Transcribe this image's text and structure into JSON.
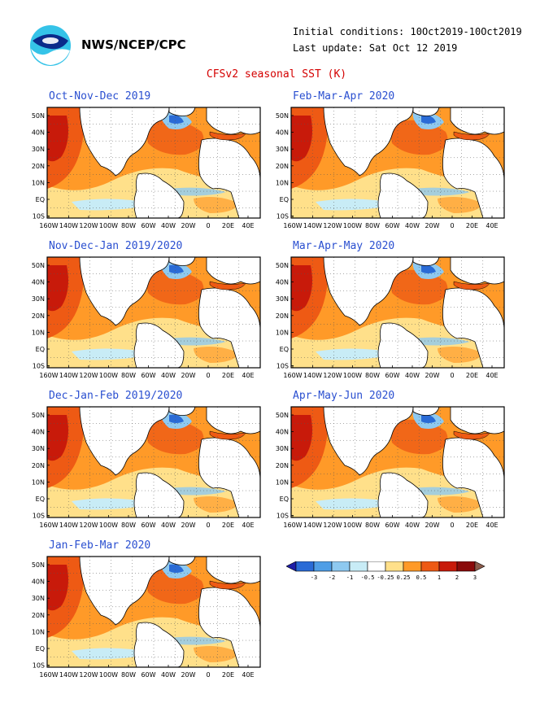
{
  "header": {
    "org": "NWS/NCEP/CPC",
    "initial_conditions": "Initial conditions: 10Oct2019-10Oct2019",
    "last_update": "Last update: Sat Oct 12 2019",
    "title": "CFSv2 seasonal SST (K)"
  },
  "map_axes": {
    "lat_labels": [
      "50N",
      "40N",
      "30N",
      "20N",
      "10N",
      "EQ",
      "10S"
    ],
    "lon_labels": [
      "160W",
      "140W",
      "120W",
      "100W",
      "80W",
      "60W",
      "40W",
      "20W",
      "0",
      "20E",
      "40E"
    ]
  },
  "panels": [
    {
      "season": "Oct-Nov-Dec 2019"
    },
    {
      "season": "Feb-Mar-Apr 2020"
    },
    {
      "season": "Nov-Dec-Jan 2019/2020"
    },
    {
      "season": "Mar-Apr-May 2020"
    },
    {
      "season": "Dec-Jan-Feb 2019/2020"
    },
    {
      "season": "Apr-May-Jun 2020"
    },
    {
      "season": "Jan-Feb-Mar 2020"
    }
  ],
  "colorbar": {
    "ticks": [
      "-3",
      "-2",
      "-1",
      "-0.5",
      "-0.25",
      "0.25",
      "0.5",
      "1",
      "2",
      "3"
    ],
    "colors": [
      "#1f1fa8",
      "#2a6bd6",
      "#4f9ee6",
      "#8ec9f0",
      "#c8ecf6",
      "#ffffff",
      "#ffe08a",
      "#ff9a28",
      "#ee5a14",
      "#c81a0a",
      "#8a0a0a",
      "#8a5a4a"
    ]
  }
}
